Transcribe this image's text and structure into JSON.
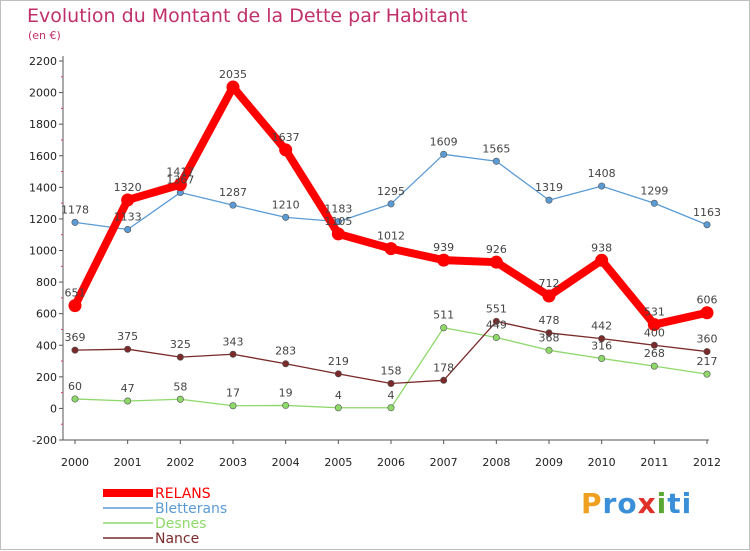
{
  "title": "Evolution du Montant de la Dette par Habitant",
  "subtitle": "(en €)",
  "brand": "Proxiti",
  "chart_data": {
    "type": "line",
    "title": "Evolution du Montant de la Dette par Habitant",
    "subtitle": "(en €)",
    "x": [
      "2000",
      "2001",
      "2002",
      "2003",
      "2004",
      "2005",
      "2006",
      "2007",
      "2008",
      "2009",
      "2010",
      "2011",
      "2012"
    ],
    "ylim": [
      -200,
      2200
    ],
    "yticks": [
      -200,
      0,
      200,
      400,
      600,
      800,
      1000,
      1200,
      1400,
      1600,
      1800,
      2000,
      2200
    ],
    "grid": false,
    "legend_position": "bottom-left",
    "series": [
      {
        "name": "RELANS",
        "color": "#ff0000",
        "values": [
          651,
          1320,
          1417,
          2035,
          1637,
          1105,
          1012,
          939,
          926,
          712,
          938,
          531,
          606
        ]
      },
      {
        "name": "Bletterans",
        "color": "#5b9bd5",
        "values": [
          1178,
          1133,
          1367,
          1287,
          1210,
          1183,
          1295,
          1609,
          1565,
          1319,
          1408,
          1299,
          1163
        ]
      },
      {
        "name": "Desnes",
        "color": "#8ed86a",
        "values": [
          60,
          47,
          58,
          17,
          19,
          4,
          4,
          511,
          449,
          368,
          316,
          268,
          217
        ]
      },
      {
        "name": "Nance",
        "color": "#7a2a2a",
        "values": [
          369,
          375,
          325,
          343,
          283,
          219,
          158,
          178,
          551,
          478,
          442,
          400,
          360
        ]
      }
    ]
  }
}
